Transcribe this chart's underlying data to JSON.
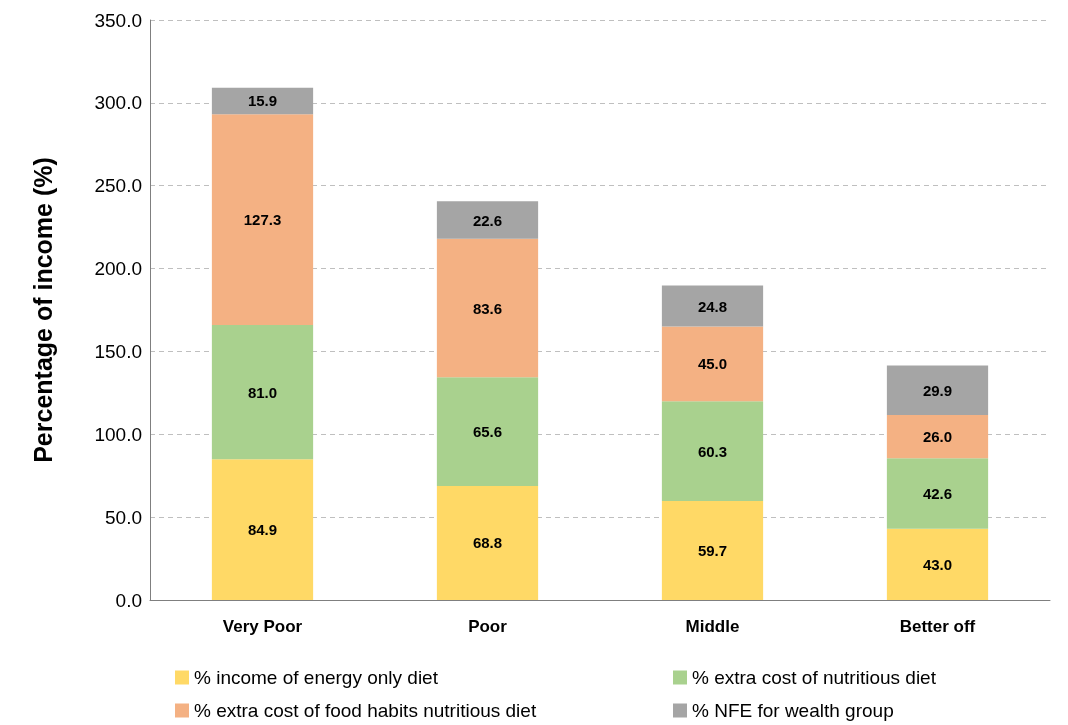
{
  "chart_data": {
    "type": "bar",
    "stacked": true,
    "ylabel": "Percentage of income (%)",
    "categories": [
      "Very Poor",
      "Poor",
      "Middle",
      "Better off"
    ],
    "series": [
      {
        "name": "% income of energy only diet",
        "color": "#ffd966",
        "values": [
          84.9,
          68.8,
          59.7,
          43.0
        ],
        "value_labels": [
          "84.9",
          "68.8",
          "59.7",
          "43.0"
        ]
      },
      {
        "name": "% extra cost of nutritious diet",
        "color": "#a9d18e",
        "values": [
          81.0,
          65.6,
          60.3,
          42.6
        ],
        "value_labels": [
          "81.0",
          "65.6",
          "60.3",
          "42.6"
        ]
      },
      {
        "name": "% extra cost of food habits nutritious diet",
        "color": "#f4b183",
        "values": [
          127.3,
          83.6,
          45.0,
          26.0
        ],
        "value_labels": [
          "127.3",
          "83.6",
          "45.0",
          "26.0"
        ]
      },
      {
        "name": "% NFE for wealth group",
        "color": "#a5a5a5",
        "values": [
          15.9,
          22.6,
          24.8,
          29.9
        ],
        "value_labels": [
          "15.9",
          "22.6",
          "24.8",
          "29.9"
        ]
      }
    ],
    "ylim": [
      0,
      350
    ],
    "yticks": [
      {
        "value": 0,
        "label": "0.0"
      },
      {
        "value": 50,
        "label": "50.0"
      },
      {
        "value": 100,
        "label": "100.0"
      },
      {
        "value": 150,
        "label": "150.0"
      },
      {
        "value": 200,
        "label": "200.0"
      },
      {
        "value": 250,
        "label": "250.0"
      },
      {
        "value": 300,
        "label": "300.0"
      },
      {
        "value": 350,
        "label": "350.0"
      }
    ],
    "grid": "y",
    "legend": "bottom"
  }
}
